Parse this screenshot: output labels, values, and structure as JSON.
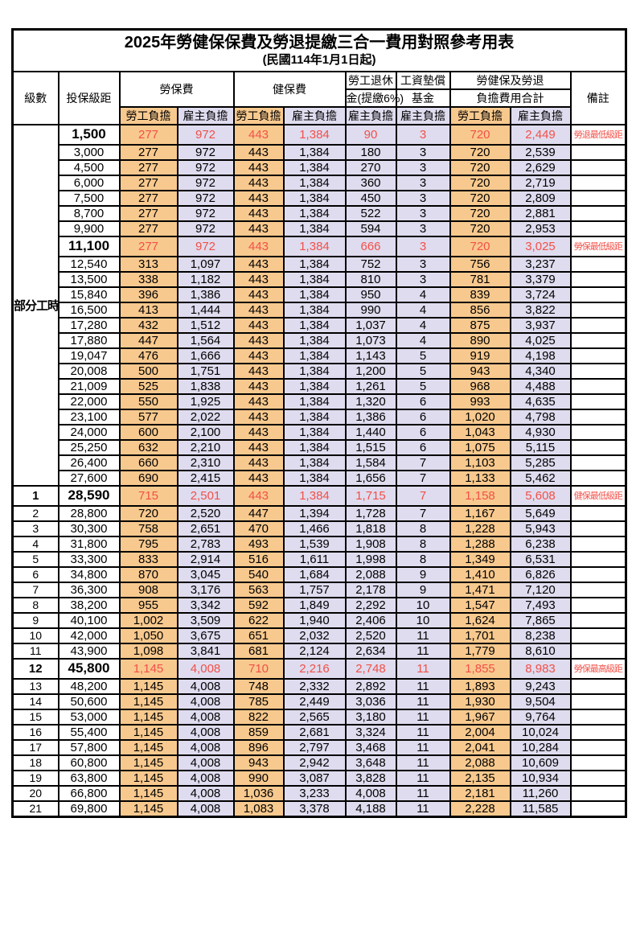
{
  "title": "2025年勞健保保費及勞退提繳三合一費用對照參考用表",
  "subtitle": "(民國114年1月1日起)",
  "colors": {
    "employee_column_bg": "#F8C98E",
    "employer_column_bg": "#DFDCEF",
    "highlight_text": "#F25048",
    "border": "#000000"
  },
  "table": {
    "header": {
      "grade": "級數",
      "bracket": "投保級距",
      "labor_insurance": "勞保費",
      "health_insurance": "健保費",
      "pension_line1": "勞工退休",
      "pension_line2": "金(提繳6%)",
      "wage_fund_line1": "工資墊償",
      "wage_fund_line2": "基金",
      "total_line1": "勞健保及勞退",
      "total_line2": "負擔費用合計",
      "employee_burden": "勞工負擔",
      "employer_burden": "雇主負擔",
      "remark": "備註"
    },
    "part_time_label": "部分工時",
    "rows": [
      {
        "grade": "",
        "bracket": "1,500",
        "li_emp": "277",
        "li_er": "972",
        "hi_emp": "443",
        "hi_er": "1,384",
        "pension": "90",
        "wage_fund": "3",
        "total_emp": "720",
        "total_er": "2,449",
        "remark": "勞退最低級距",
        "highlight": true
      },
      {
        "grade": "",
        "bracket": "3,000",
        "li_emp": "277",
        "li_er": "972",
        "hi_emp": "443",
        "hi_er": "1,384",
        "pension": "180",
        "wage_fund": "3",
        "total_emp": "720",
        "total_er": "2,539",
        "remark": "",
        "highlight": false
      },
      {
        "grade": "",
        "bracket": "4,500",
        "li_emp": "277",
        "li_er": "972",
        "hi_emp": "443",
        "hi_er": "1,384",
        "pension": "270",
        "wage_fund": "3",
        "total_emp": "720",
        "total_er": "2,629",
        "remark": "",
        "highlight": false
      },
      {
        "grade": "",
        "bracket": "6,000",
        "li_emp": "277",
        "li_er": "972",
        "hi_emp": "443",
        "hi_er": "1,384",
        "pension": "360",
        "wage_fund": "3",
        "total_emp": "720",
        "total_er": "2,719",
        "remark": "",
        "highlight": false
      },
      {
        "grade": "",
        "bracket": "7,500",
        "li_emp": "277",
        "li_er": "972",
        "hi_emp": "443",
        "hi_er": "1,384",
        "pension": "450",
        "wage_fund": "3",
        "total_emp": "720",
        "total_er": "2,809",
        "remark": "",
        "highlight": false
      },
      {
        "grade": "",
        "bracket": "8,700",
        "li_emp": "277",
        "li_er": "972",
        "hi_emp": "443",
        "hi_er": "1,384",
        "pension": "522",
        "wage_fund": "3",
        "total_emp": "720",
        "total_er": "2,881",
        "remark": "",
        "highlight": false
      },
      {
        "grade": "",
        "bracket": "9,900",
        "li_emp": "277",
        "li_er": "972",
        "hi_emp": "443",
        "hi_er": "1,384",
        "pension": "594",
        "wage_fund": "3",
        "total_emp": "720",
        "total_er": "2,953",
        "remark": "",
        "highlight": false
      },
      {
        "grade": "",
        "bracket": "11,100",
        "li_emp": "277",
        "li_er": "972",
        "hi_emp": "443",
        "hi_er": "1,384",
        "pension": "666",
        "wage_fund": "3",
        "total_emp": "720",
        "total_er": "3,025",
        "remark": "勞保最低級距",
        "highlight": true
      },
      {
        "grade": "",
        "bracket": "12,540",
        "li_emp": "313",
        "li_er": "1,097",
        "hi_emp": "443",
        "hi_er": "1,384",
        "pension": "752",
        "wage_fund": "3",
        "total_emp": "756",
        "total_er": "3,237",
        "remark": "",
        "highlight": false
      },
      {
        "grade": "",
        "bracket": "13,500",
        "li_emp": "338",
        "li_er": "1,182",
        "hi_emp": "443",
        "hi_er": "1,384",
        "pension": "810",
        "wage_fund": "3",
        "total_emp": "781",
        "total_er": "3,379",
        "remark": "",
        "highlight": false
      },
      {
        "grade": "",
        "bracket": "15,840",
        "li_emp": "396",
        "li_er": "1,386",
        "hi_emp": "443",
        "hi_er": "1,384",
        "pension": "950",
        "wage_fund": "4",
        "total_emp": "839",
        "total_er": "3,724",
        "remark": "",
        "highlight": false
      },
      {
        "grade": "",
        "bracket": "16,500",
        "li_emp": "413",
        "li_er": "1,444",
        "hi_emp": "443",
        "hi_er": "1,384",
        "pension": "990",
        "wage_fund": "4",
        "total_emp": "856",
        "total_er": "3,822",
        "remark": "",
        "highlight": false
      },
      {
        "grade": "",
        "bracket": "17,280",
        "li_emp": "432",
        "li_er": "1,512",
        "hi_emp": "443",
        "hi_er": "1,384",
        "pension": "1,037",
        "wage_fund": "4",
        "total_emp": "875",
        "total_er": "3,937",
        "remark": "",
        "highlight": false
      },
      {
        "grade": "",
        "bracket": "17,880",
        "li_emp": "447",
        "li_er": "1,564",
        "hi_emp": "443",
        "hi_er": "1,384",
        "pension": "1,073",
        "wage_fund": "4",
        "total_emp": "890",
        "total_er": "4,025",
        "remark": "",
        "highlight": false
      },
      {
        "grade": "",
        "bracket": "19,047",
        "li_emp": "476",
        "li_er": "1,666",
        "hi_emp": "443",
        "hi_er": "1,384",
        "pension": "1,143",
        "wage_fund": "5",
        "total_emp": "919",
        "total_er": "4,198",
        "remark": "",
        "highlight": false
      },
      {
        "grade": "",
        "bracket": "20,008",
        "li_emp": "500",
        "li_er": "1,751",
        "hi_emp": "443",
        "hi_er": "1,384",
        "pension": "1,200",
        "wage_fund": "5",
        "total_emp": "943",
        "total_er": "4,340",
        "remark": "",
        "highlight": false
      },
      {
        "grade": "",
        "bracket": "21,009",
        "li_emp": "525",
        "li_er": "1,838",
        "hi_emp": "443",
        "hi_er": "1,384",
        "pension": "1,261",
        "wage_fund": "5",
        "total_emp": "968",
        "total_er": "4,488",
        "remark": "",
        "highlight": false
      },
      {
        "grade": "",
        "bracket": "22,000",
        "li_emp": "550",
        "li_er": "1,925",
        "hi_emp": "443",
        "hi_er": "1,384",
        "pension": "1,320",
        "wage_fund": "6",
        "total_emp": "993",
        "total_er": "4,635",
        "remark": "",
        "highlight": false
      },
      {
        "grade": "",
        "bracket": "23,100",
        "li_emp": "577",
        "li_er": "2,022",
        "hi_emp": "443",
        "hi_er": "1,384",
        "pension": "1,386",
        "wage_fund": "6",
        "total_emp": "1,020",
        "total_er": "4,798",
        "remark": "",
        "highlight": false
      },
      {
        "grade": "",
        "bracket": "24,000",
        "li_emp": "600",
        "li_er": "2,100",
        "hi_emp": "443",
        "hi_er": "1,384",
        "pension": "1,440",
        "wage_fund": "6",
        "total_emp": "1,043",
        "total_er": "4,930",
        "remark": "",
        "highlight": false
      },
      {
        "grade": "",
        "bracket": "25,250",
        "li_emp": "632",
        "li_er": "2,210",
        "hi_emp": "443",
        "hi_er": "1,384",
        "pension": "1,515",
        "wage_fund": "6",
        "total_emp": "1,075",
        "total_er": "5,115",
        "remark": "",
        "highlight": false
      },
      {
        "grade": "",
        "bracket": "26,400",
        "li_emp": "660",
        "li_er": "2,310",
        "hi_emp": "443",
        "hi_er": "1,384",
        "pension": "1,584",
        "wage_fund": "7",
        "total_emp": "1,103",
        "total_er": "5,285",
        "remark": "",
        "highlight": false
      },
      {
        "grade": "",
        "bracket": "27,600",
        "li_emp": "690",
        "li_er": "2,415",
        "hi_emp": "443",
        "hi_er": "1,384",
        "pension": "1,656",
        "wage_fund": "7",
        "total_emp": "1,133",
        "total_er": "5,462",
        "remark": "",
        "highlight": false
      },
      {
        "grade": "1",
        "bracket": "28,590",
        "li_emp": "715",
        "li_er": "2,501",
        "hi_emp": "443",
        "hi_er": "1,384",
        "pension": "1,715",
        "wage_fund": "7",
        "total_emp": "1,158",
        "total_er": "5,608",
        "remark": "健保最低級距",
        "highlight": true
      },
      {
        "grade": "2",
        "bracket": "28,800",
        "li_emp": "720",
        "li_er": "2,520",
        "hi_emp": "447",
        "hi_er": "1,394",
        "pension": "1,728",
        "wage_fund": "7",
        "total_emp": "1,167",
        "total_er": "5,649",
        "remark": "",
        "highlight": false
      },
      {
        "grade": "3",
        "bracket": "30,300",
        "li_emp": "758",
        "li_er": "2,651",
        "hi_emp": "470",
        "hi_er": "1,466",
        "pension": "1,818",
        "wage_fund": "8",
        "total_emp": "1,228",
        "total_er": "5,943",
        "remark": "",
        "highlight": false
      },
      {
        "grade": "4",
        "bracket": "31,800",
        "li_emp": "795",
        "li_er": "2,783",
        "hi_emp": "493",
        "hi_er": "1,539",
        "pension": "1,908",
        "wage_fund": "8",
        "total_emp": "1,288",
        "total_er": "6,238",
        "remark": "",
        "highlight": false
      },
      {
        "grade": "5",
        "bracket": "33,300",
        "li_emp": "833",
        "li_er": "2,914",
        "hi_emp": "516",
        "hi_er": "1,611",
        "pension": "1,998",
        "wage_fund": "8",
        "total_emp": "1,349",
        "total_er": "6,531",
        "remark": "",
        "highlight": false
      },
      {
        "grade": "6",
        "bracket": "34,800",
        "li_emp": "870",
        "li_er": "3,045",
        "hi_emp": "540",
        "hi_er": "1,684",
        "pension": "2,088",
        "wage_fund": "9",
        "total_emp": "1,410",
        "total_er": "6,826",
        "remark": "",
        "highlight": false
      },
      {
        "grade": "7",
        "bracket": "36,300",
        "li_emp": "908",
        "li_er": "3,176",
        "hi_emp": "563",
        "hi_er": "1,757",
        "pension": "2,178",
        "wage_fund": "9",
        "total_emp": "1,471",
        "total_er": "7,120",
        "remark": "",
        "highlight": false
      },
      {
        "grade": "8",
        "bracket": "38,200",
        "li_emp": "955",
        "li_er": "3,342",
        "hi_emp": "592",
        "hi_er": "1,849",
        "pension": "2,292",
        "wage_fund": "10",
        "total_emp": "1,547",
        "total_er": "7,493",
        "remark": "",
        "highlight": false
      },
      {
        "grade": "9",
        "bracket": "40,100",
        "li_emp": "1,002",
        "li_er": "3,509",
        "hi_emp": "622",
        "hi_er": "1,940",
        "pension": "2,406",
        "wage_fund": "10",
        "total_emp": "1,624",
        "total_er": "7,865",
        "remark": "",
        "highlight": false
      },
      {
        "grade": "10",
        "bracket": "42,000",
        "li_emp": "1,050",
        "li_er": "3,675",
        "hi_emp": "651",
        "hi_er": "2,032",
        "pension": "2,520",
        "wage_fund": "11",
        "total_emp": "1,701",
        "total_er": "8,238",
        "remark": "",
        "highlight": false
      },
      {
        "grade": "11",
        "bracket": "43,900",
        "li_emp": "1,098",
        "li_er": "3,841",
        "hi_emp": "681",
        "hi_er": "2,124",
        "pension": "2,634",
        "wage_fund": "11",
        "total_emp": "1,779",
        "total_er": "8,610",
        "remark": "",
        "highlight": false
      },
      {
        "grade": "12",
        "bracket": "45,800",
        "li_emp": "1,145",
        "li_er": "4,008",
        "hi_emp": "710",
        "hi_er": "2,216",
        "pension": "2,748",
        "wage_fund": "11",
        "total_emp": "1,855",
        "total_er": "8,983",
        "remark": "勞保最高級距",
        "highlight": true
      },
      {
        "grade": "13",
        "bracket": "48,200",
        "li_emp": "1,145",
        "li_er": "4,008",
        "hi_emp": "748",
        "hi_er": "2,332",
        "pension": "2,892",
        "wage_fund": "11",
        "total_emp": "1,893",
        "total_er": "9,243",
        "remark": "",
        "highlight": false
      },
      {
        "grade": "14",
        "bracket": "50,600",
        "li_emp": "1,145",
        "li_er": "4,008",
        "hi_emp": "785",
        "hi_er": "2,449",
        "pension": "3,036",
        "wage_fund": "11",
        "total_emp": "1,930",
        "total_er": "9,504",
        "remark": "",
        "highlight": false
      },
      {
        "grade": "15",
        "bracket": "53,000",
        "li_emp": "1,145",
        "li_er": "4,008",
        "hi_emp": "822",
        "hi_er": "2,565",
        "pension": "3,180",
        "wage_fund": "11",
        "total_emp": "1,967",
        "total_er": "9,764",
        "remark": "",
        "highlight": false
      },
      {
        "grade": "16",
        "bracket": "55,400",
        "li_emp": "1,145",
        "li_er": "4,008",
        "hi_emp": "859",
        "hi_er": "2,681",
        "pension": "3,324",
        "wage_fund": "11",
        "total_emp": "2,004",
        "total_er": "10,024",
        "remark": "",
        "highlight": false
      },
      {
        "grade": "17",
        "bracket": "57,800",
        "li_emp": "1,145",
        "li_er": "4,008",
        "hi_emp": "896",
        "hi_er": "2,797",
        "pension": "3,468",
        "wage_fund": "11",
        "total_emp": "2,041",
        "total_er": "10,284",
        "remark": "",
        "highlight": false
      },
      {
        "grade": "18",
        "bracket": "60,800",
        "li_emp": "1,145",
        "li_er": "4,008",
        "hi_emp": "943",
        "hi_er": "2,942",
        "pension": "3,648",
        "wage_fund": "11",
        "total_emp": "2,088",
        "total_er": "10,609",
        "remark": "",
        "highlight": false
      },
      {
        "grade": "19",
        "bracket": "63,800",
        "li_emp": "1,145",
        "li_er": "4,008",
        "hi_emp": "990",
        "hi_er": "3,087",
        "pension": "3,828",
        "wage_fund": "11",
        "total_emp": "2,135",
        "total_er": "10,934",
        "remark": "",
        "highlight": false
      },
      {
        "grade": "20",
        "bracket": "66,800",
        "li_emp": "1,145",
        "li_er": "4,008",
        "hi_emp": "1,036",
        "hi_er": "3,233",
        "pension": "4,008",
        "wage_fund": "11",
        "total_emp": "2,181",
        "total_er": "11,260",
        "remark": "",
        "highlight": false
      },
      {
        "grade": "21",
        "bracket": "69,800",
        "li_emp": "1,145",
        "li_er": "4,008",
        "hi_emp": "1,083",
        "hi_er": "3,378",
        "pension": "4,188",
        "wage_fund": "11",
        "total_emp": "2,228",
        "total_er": "11,585",
        "remark": "",
        "highlight": false
      }
    ]
  }
}
